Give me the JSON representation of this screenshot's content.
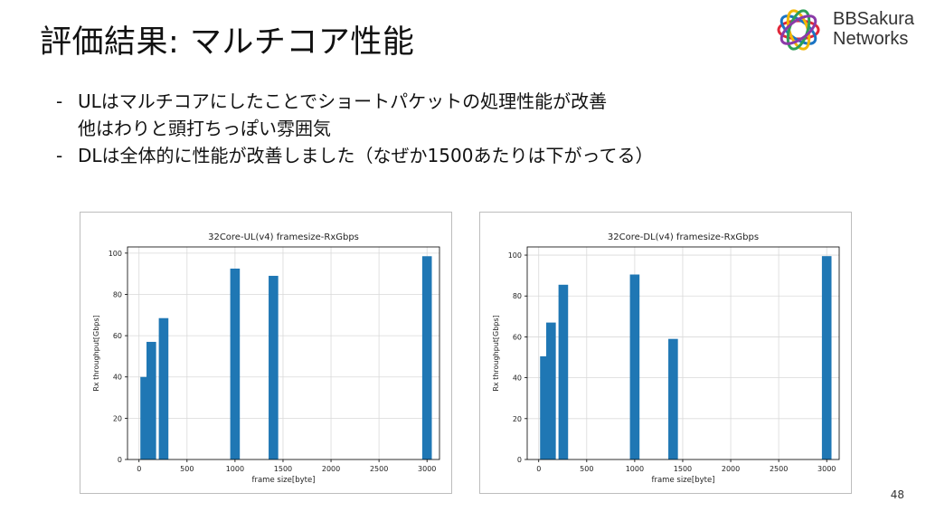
{
  "slide": {
    "title": "評価結果: マルチコア性能",
    "page_number": "48",
    "logo": {
      "line1": "BBSakura",
      "line2": "Networks"
    },
    "bullets": [
      {
        "dash": "-",
        "text": "ULはマルチコアにしたことでショートパケットの処理性能が改善",
        "continuation": "他はわりと頭打ちっぽい雰囲気"
      },
      {
        "dash": "-",
        "text": "DLは全体的に性能が改善しました（なぜか1500あたりは下がってる）",
        "continuation": ""
      }
    ]
  },
  "chart_data": [
    {
      "type": "bar",
      "title": "32Core-UL(v4) framesize-RxGbps",
      "xlabel": "frame size[byte]",
      "ylabel": "Rx throughput[Gbps]",
      "x": [
        64,
        128,
        256,
        1000,
        1400,
        3000
      ],
      "values": [
        40,
        57,
        68.5,
        92.5,
        89,
        98.5
      ],
      "bar_width": 100,
      "xlim": [
        -120,
        3130
      ],
      "ylim": [
        0,
        103
      ],
      "xticks": [
        0,
        500,
        1000,
        1500,
        2000,
        2500,
        3000
      ],
      "yticks": [
        0,
        20,
        40,
        60,
        80,
        100
      ],
      "grid": true,
      "color": "#1f77b4"
    },
    {
      "type": "bar",
      "title": "32Core-DL(v4) framesize-RxGbps",
      "xlabel": "frame size[byte]",
      "ylabel": "Rx throughput[Gbps]",
      "x": [
        64,
        128,
        256,
        1000,
        1400,
        3000
      ],
      "values": [
        50.5,
        67,
        85.5,
        90.5,
        59,
        99.5
      ],
      "bar_width": 100,
      "xlim": [
        -120,
        3130
      ],
      "ylim": [
        0,
        104
      ],
      "xticks": [
        0,
        500,
        1000,
        1500,
        2000,
        2500,
        3000
      ],
      "yticks": [
        0,
        20,
        40,
        60,
        80,
        100
      ],
      "grid": true,
      "color": "#1f77b4"
    }
  ]
}
